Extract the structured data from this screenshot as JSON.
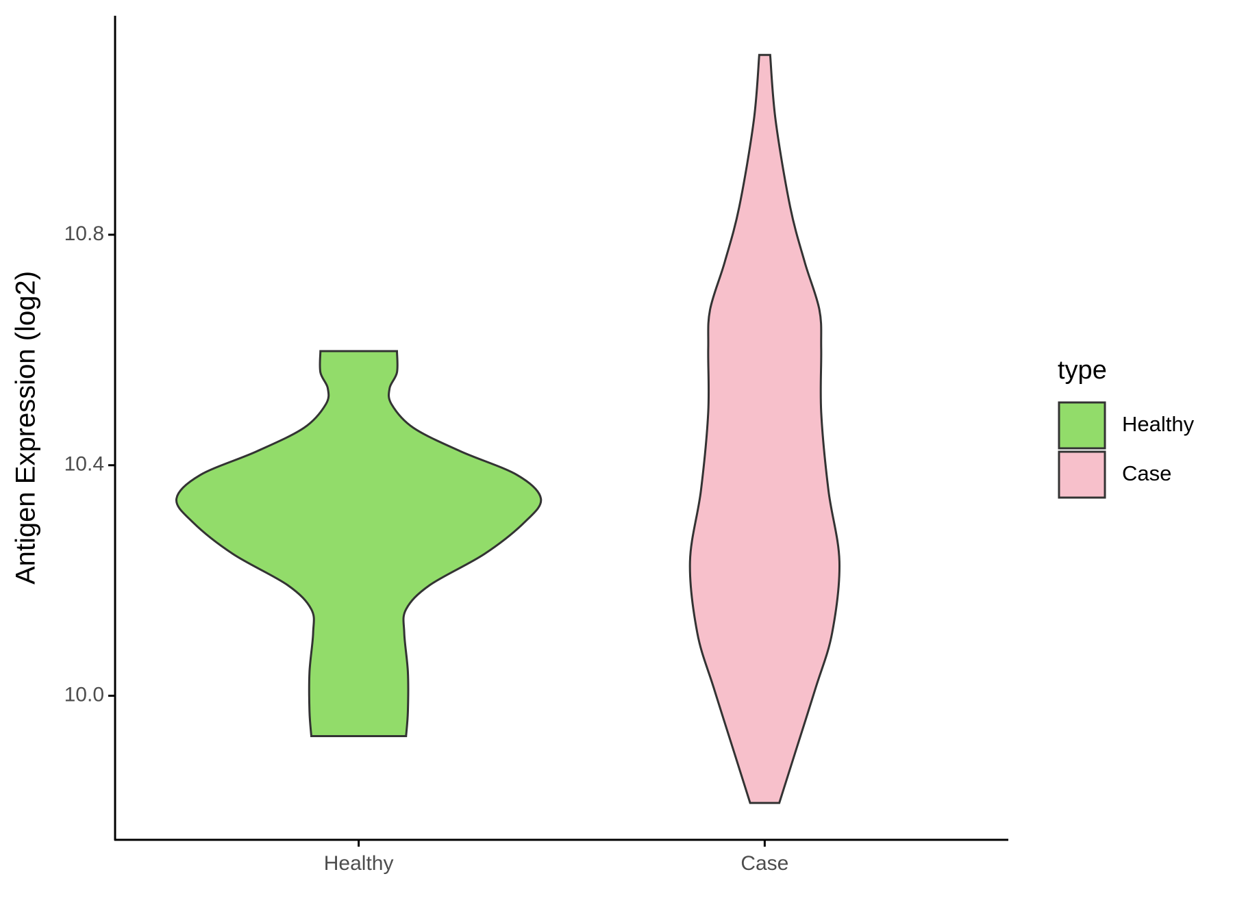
{
  "chart_data": {
    "type": "violin",
    "y_label": "Antigen Expression (log2)",
    "categories": [
      "Healthy",
      "Case"
    ],
    "ylim": [
      9.75,
      11.18
    ],
    "yticks": [
      {
        "value": 10.0,
        "label": "10.0"
      },
      {
        "value": 10.4,
        "label": "10.4"
      },
      {
        "value": 10.8,
        "label": "10.8"
      }
    ],
    "legend_title": "type",
    "legend_position": "right",
    "series": [
      {
        "name": "Healthy",
        "color": "#92dc6a",
        "y": [
          9.93,
          9.973,
          10.041,
          10.109,
          10.15,
          10.192,
          10.246,
          10.301,
          10.342,
          10.383,
          10.424,
          10.465,
          10.506,
          10.534,
          10.561,
          10.598
        ],
        "width": [
          0.26,
          0.27,
          0.27,
          0.25,
          0.26,
          0.39,
          0.69,
          0.91,
          1.0,
          0.87,
          0.56,
          0.3,
          0.18,
          0.17,
          0.21,
          0.21
        ]
      },
      {
        "name": "Case",
        "color": "#f7c0cb",
        "y": [
          9.814,
          9.904,
          10.014,
          10.109,
          10.233,
          10.356,
          10.492,
          10.602,
          10.67,
          10.752,
          10.848,
          10.998,
          11.112
        ],
        "width": [
          0.08,
          0.17,
          0.28,
          0.37,
          0.41,
          0.35,
          0.31,
          0.31,
          0.3,
          0.22,
          0.14,
          0.06,
          0.03
        ]
      }
    ]
  }
}
